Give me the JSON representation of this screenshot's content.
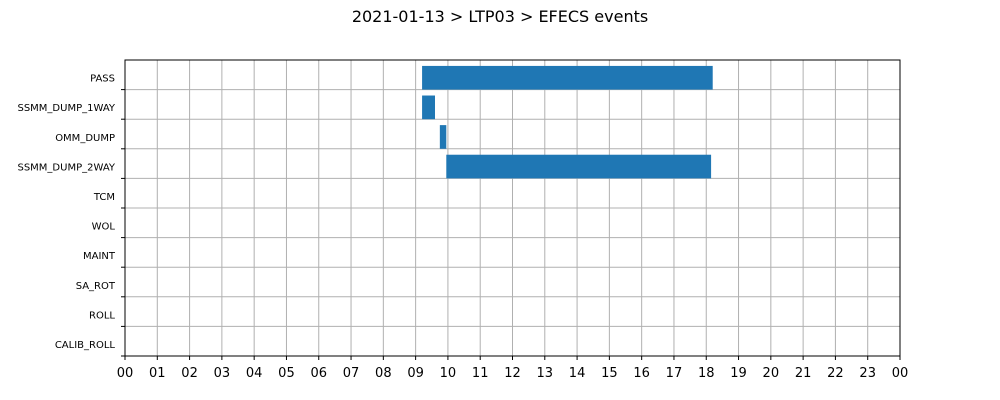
{
  "chart_data": {
    "type": "bar",
    "orientation": "horizontal-timeline",
    "title": "2021-01-13 > LTP03 > EFECS events",
    "xlabel": "",
    "ylabel": "",
    "x_unit": "hour",
    "xlim": [
      0,
      24
    ],
    "x_tick_labels": [
      "00",
      "01",
      "02",
      "03",
      "04",
      "05",
      "06",
      "07",
      "08",
      "09",
      "10",
      "11",
      "12",
      "13",
      "14",
      "15",
      "16",
      "17",
      "18",
      "19",
      "20",
      "21",
      "22",
      "23",
      "00"
    ],
    "categories": [
      "PASS",
      "SSMM_DUMP_1WAY",
      "OMM_DUMP",
      "SSMM_DUMP_2WAY",
      "TCM",
      "WOL",
      "MAINT",
      "SA_ROT",
      "ROLL",
      "CALIB_ROLL"
    ],
    "grid": true,
    "bar_color": "#1f77b4",
    "events": [
      {
        "category": "PASS",
        "start": 9.2,
        "end": 18.2
      },
      {
        "category": "SSMM_DUMP_1WAY",
        "start": 9.2,
        "end": 9.6
      },
      {
        "category": "OMM_DUMP",
        "start": 9.75,
        "end": 9.95
      },
      {
        "category": "SSMM_DUMP_2WAY",
        "start": 9.95,
        "end": 18.15
      }
    ]
  }
}
